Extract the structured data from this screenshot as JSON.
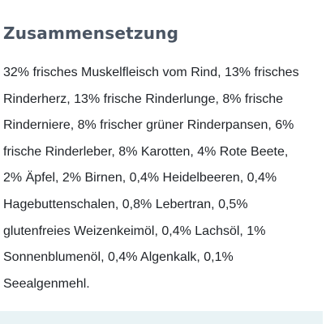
{
  "section": {
    "title": "Zusammensetzung",
    "lines": [
      "32% frisches Muskelfleisch vom Rind, 13% frisches",
      "Rinderherz, 13% frische Rinderlunge, 8% frische",
      "Rinderniere, 8% frischer grüner Rinderpansen, 6%",
      "frische Rinderleber, 8% Karotten, 4% Rote Beete,",
      "2% Äpfel, 2% Birnen, 0,4% Heidelbeeren, 0,4%",
      "Hagebuttenschalen, 0,8% Lebertran, 0,5%",
      "glutenfreies Weizenkeimöl, 0,4% Lachsöl, 1%",
      "Sonnenblumenöl, 0,4% Algenkalk, 0,1%",
      "Seealgenmehl."
    ]
  },
  "colors": {
    "title": "#4a5563",
    "body_text": "#1f2328",
    "bottom_panel": "#e9f3f5"
  }
}
